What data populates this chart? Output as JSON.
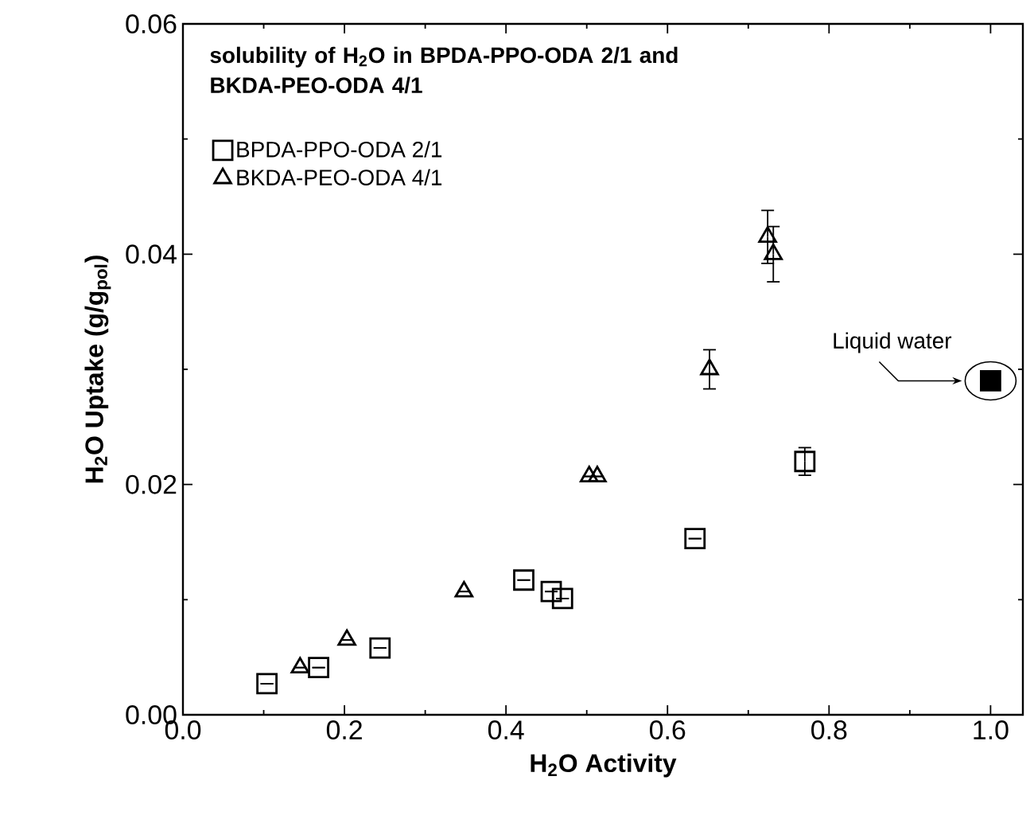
{
  "chart_data": {
    "type": "scatter",
    "legend_title": "solubility of H$_{2}$O in BPDA-PPO-ODA 2/1 and BKDA-PEO-ODA 4/1",
    "xlabel": "H$_{2}$O Activity",
    "ylabel": "H$_{2}$O Uptake (g/g$_{pol}$)",
    "series": [
      {
        "name": "BPDA-PPO-ODA 2/1",
        "color": "#000000",
        "marker": "square",
        "x": [
          0.104,
          0.168,
          0.244,
          0.422,
          0.456,
          0.47,
          0.634,
          0.77
        ],
        "values": [
          0.0027,
          0.0041,
          0.0058,
          0.0117,
          0.0107,
          0.0101,
          0.0153,
          0.022
        ],
        "errors": [
          null,
          null,
          null,
          null,
          null,
          null,
          null,
          0.0012
        ]
      },
      {
        "name": "BKDA-PEO-ODA 4/1",
        "color": "#000000",
        "marker": "triangle",
        "x": [
          0.145,
          0.203,
          0.348,
          0.503,
          0.513,
          0.652,
          0.724,
          0.731
        ],
        "values": [
          0.0041,
          0.0065,
          0.0107,
          0.0207,
          0.0207,
          0.03,
          0.0415,
          0.04
        ],
        "errors": [
          null,
          null,
          null,
          null,
          null,
          0.0017,
          0.0023,
          0.0024
        ]
      },
      {
        "color": "#000000",
        "marker": "square",
        "x": [
          1.0
        ],
        "values": [
          0.029
        ]
      }
    ],
    "annotations": [
      {
        "text": "Liquid water",
        "x": 1.0,
        "y": 0.029
      }
    ],
    "xlim": [
      0,
      1.04
    ],
    "ylim": [
      0,
      0.06
    ],
    "xticks": [
      {
        "value": 0,
        "label": "0.0"
      },
      {
        "value": 0.2,
        "label": "0.2"
      },
      {
        "value": 0.4,
        "label": "0.4"
      },
      {
        "value": 0.6,
        "label": "0.6"
      },
      {
        "value": 0.8,
        "label": "0.8"
      },
      {
        "value": 1.0,
        "label": "1.0"
      }
    ],
    "yticks": [
      {
        "value": 0,
        "label": "0.00"
      },
      {
        "value": 0.02,
        "label": "0.02"
      },
      {
        "value": 0.04,
        "label": "0.04"
      },
      {
        "value": 0.06,
        "label": "0.06"
      }
    ],
    "legend": "top left",
    "grid": false
  }
}
